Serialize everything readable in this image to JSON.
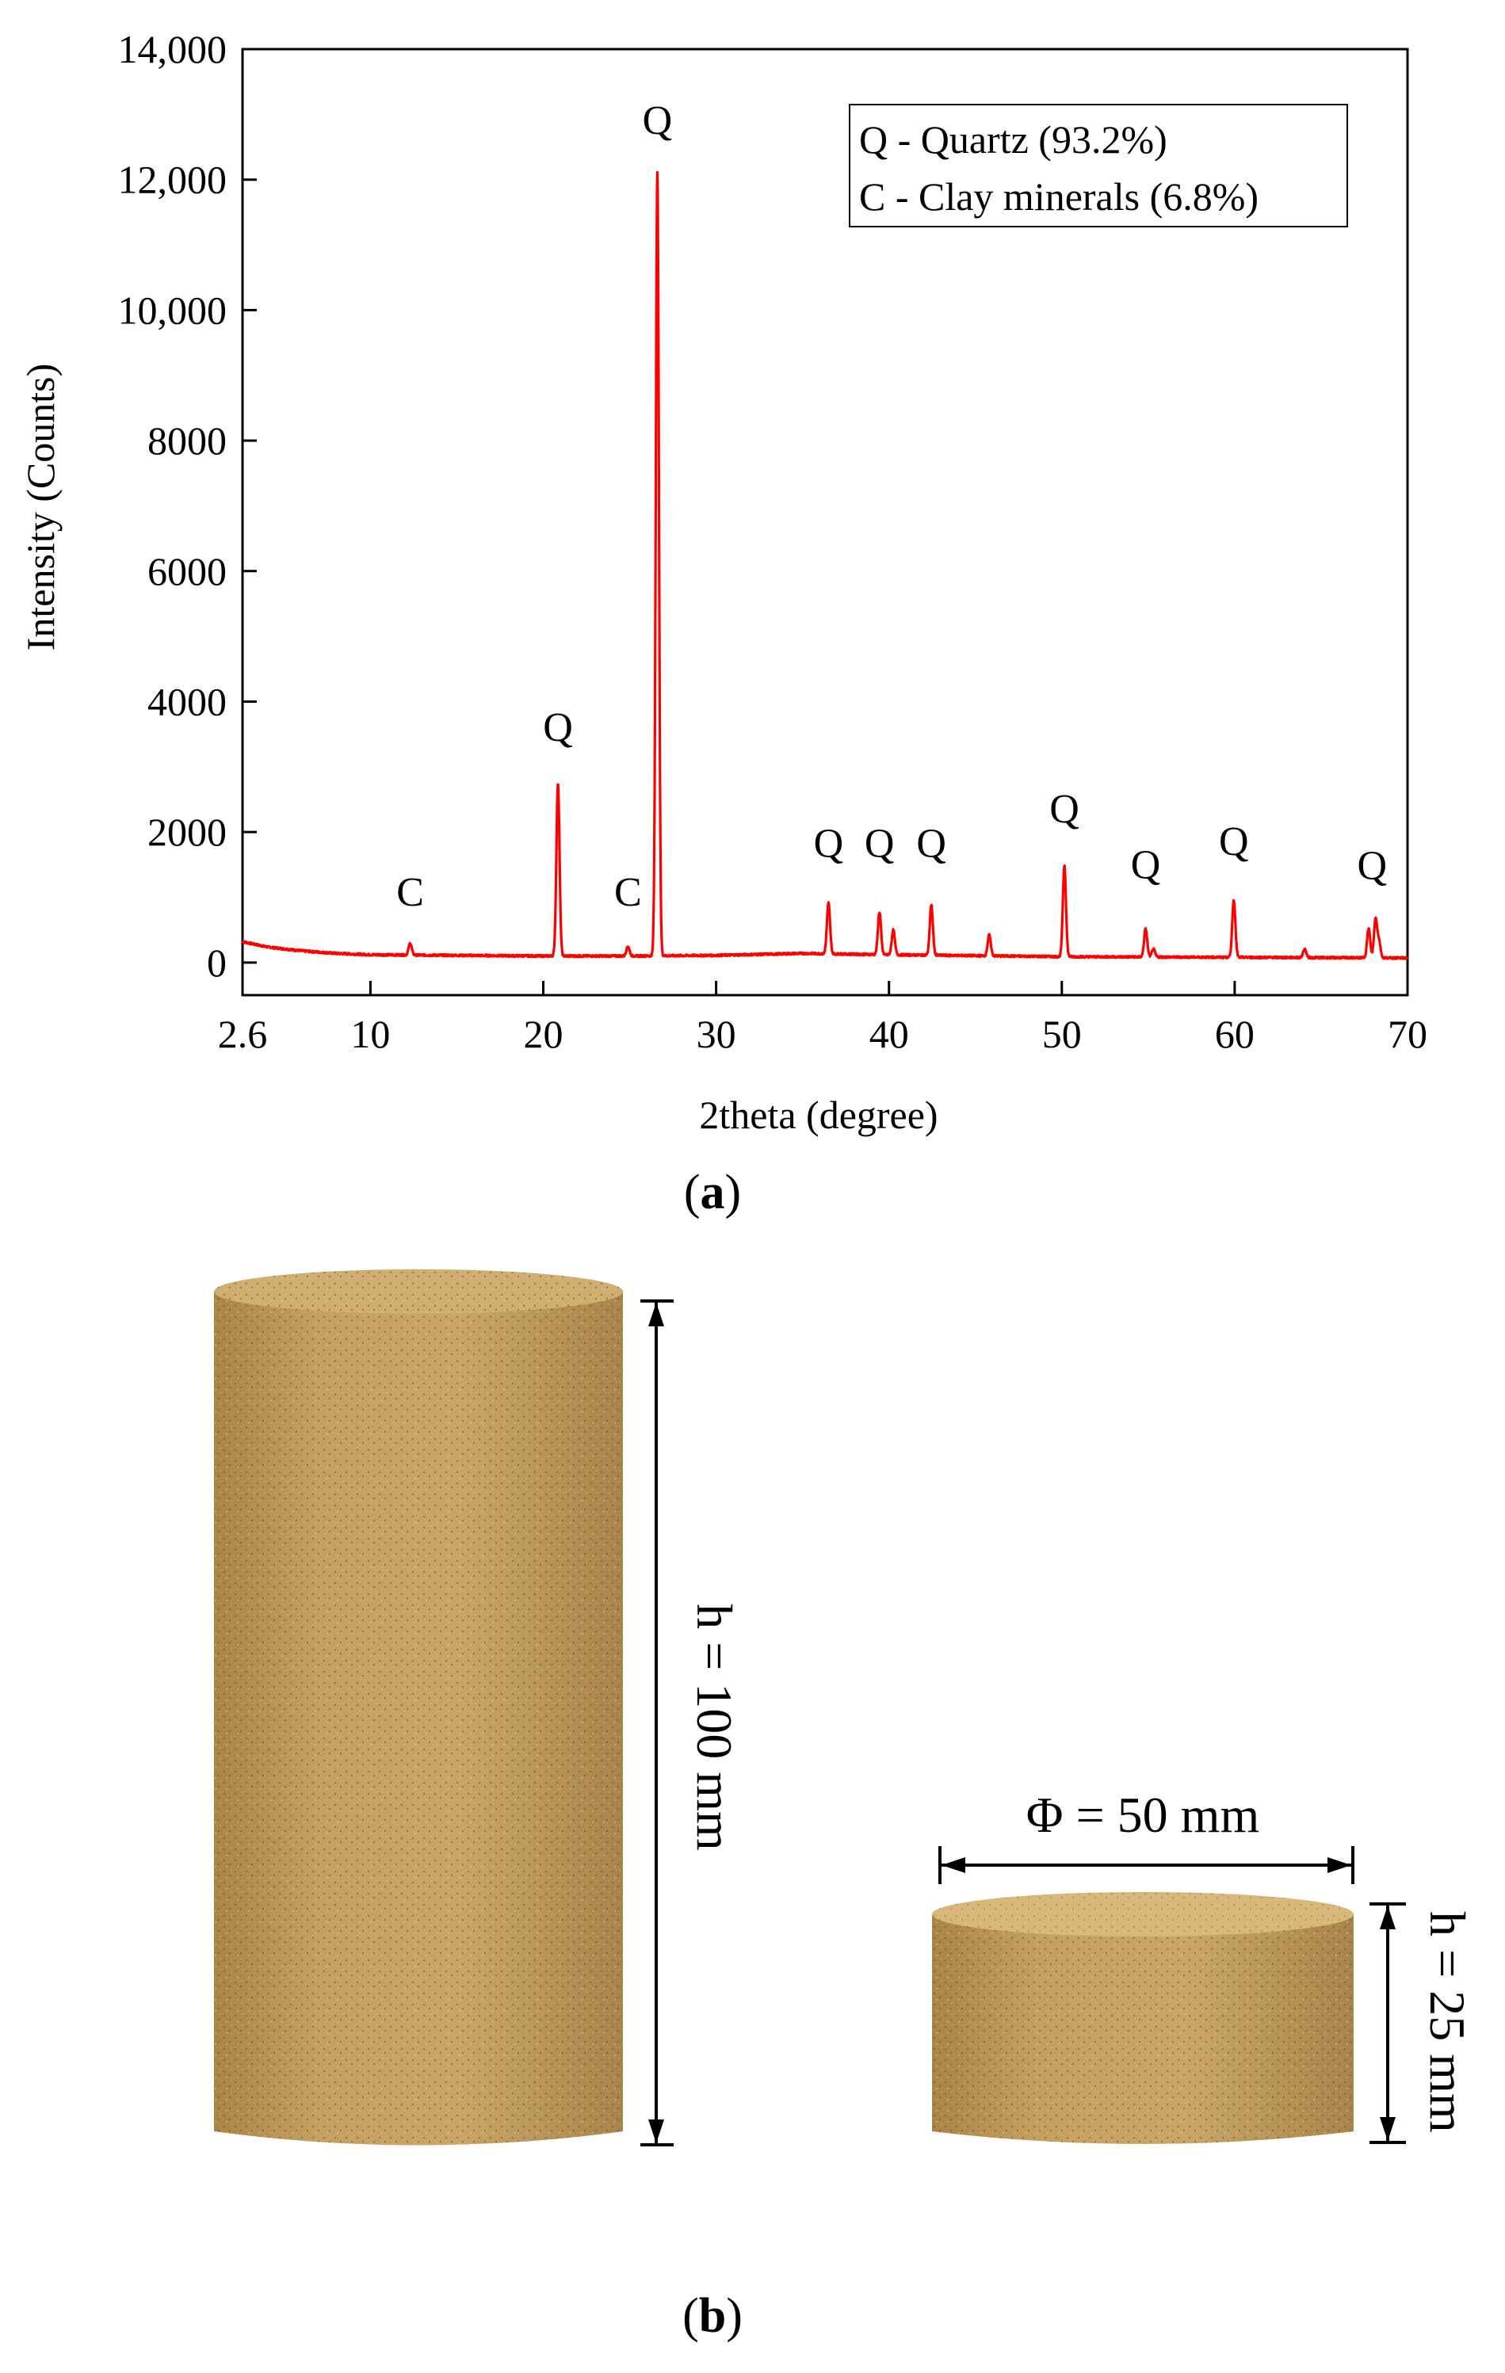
{
  "chart_data": {
    "type": "line",
    "xlabel": "2theta (degree)",
    "ylabel": "Intensity (Counts)",
    "xlim": [
      2.6,
      70
    ],
    "ylim": [
      -500,
      14000
    ],
    "x_ticks": [
      2.6,
      10,
      20,
      30,
      40,
      50,
      60,
      70
    ],
    "x_tick_labels": [
      "2.6",
      "10",
      "20",
      "30",
      "40",
      "50",
      "60",
      "70"
    ],
    "y_ticks": [
      0,
      2000,
      4000,
      6000,
      8000,
      10000,
      12000,
      14000
    ],
    "y_tick_labels": [
      "0",
      "2000",
      "4000",
      "6000",
      "8000",
      "10,000",
      "12,000",
      "14,000"
    ],
    "line_color": "#ff0000",
    "legend_position": "top-right",
    "legend_entries": [
      "Q - Quartz (93.2%)",
      "C - Clay minerals (6.8%)"
    ],
    "series": [
      {
        "background": [
          [
            2.6,
            320
          ],
          [
            4,
            240
          ],
          [
            6,
            180
          ],
          [
            8,
            140
          ],
          [
            10,
            120
          ],
          [
            15,
            110
          ],
          [
            20,
            100
          ],
          [
            25,
            100
          ],
          [
            30,
            110
          ],
          [
            35,
            140
          ],
          [
            40,
            120
          ],
          [
            50,
            90
          ],
          [
            60,
            80
          ],
          [
            70,
            70
          ]
        ],
        "peaks": [
          [
            12.3,
            180
          ],
          [
            20.85,
            2650
          ],
          [
            24.9,
            150
          ],
          [
            26.6,
            12000
          ],
          [
            36.5,
            780
          ],
          [
            39.45,
            650
          ],
          [
            40.25,
            380
          ],
          [
            42.45,
            760
          ],
          [
            45.8,
            320
          ],
          [
            50.15,
            1400
          ],
          [
            54.85,
            430
          ],
          [
            55.3,
            120
          ],
          [
            59.95,
            880
          ],
          [
            64.05,
            130
          ],
          [
            67.75,
            450
          ],
          [
            68.15,
            590
          ],
          [
            68.35,
            250
          ]
        ]
      }
    ],
    "annotations": [
      {
        "text": "C",
        "x": 12.3,
        "y": 870
      },
      {
        "text": "Q",
        "x": 20.85,
        "y": 3400
      },
      {
        "text": "C",
        "x": 24.9,
        "y": 870
      },
      {
        "text": "Q",
        "x": 26.6,
        "y": 12700
      },
      {
        "text": "Q",
        "x": 36.5,
        "y": 1620
      },
      {
        "text": "Q",
        "x": 39.45,
        "y": 1620
      },
      {
        "text": "Q",
        "x": 42.45,
        "y": 1620
      },
      {
        "text": "Q",
        "x": 50.15,
        "y": 2150
      },
      {
        "text": "Q",
        "x": 54.85,
        "y": 1290
      },
      {
        "text": "Q",
        "x": 59.95,
        "y": 1650
      },
      {
        "text": "Q",
        "x": 67.95,
        "y": 1280
      }
    ]
  },
  "panel_a_label": "a",
  "panel_b_label": "b",
  "specimens": {
    "tall": {
      "height_label": "h = 100 mm"
    },
    "short": {
      "diameter_label": "Φ = 50 mm",
      "height_label": "h = 25 mm"
    },
    "colors": {
      "body": "#c4a060",
      "top": "#d8b87a"
    }
  }
}
